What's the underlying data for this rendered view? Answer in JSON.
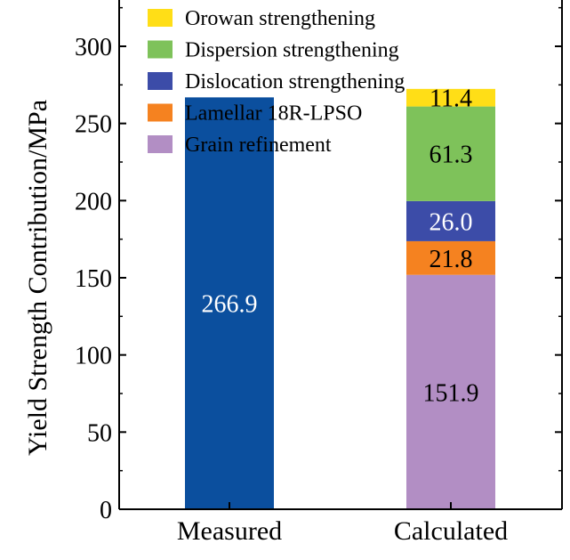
{
  "chart_data": {
    "type": "bar",
    "stacked": true,
    "categories": [
      "Measured",
      "Calculated"
    ],
    "ylabel": "Yield Strength Contribution/MPa",
    "xlabel": "",
    "ylim": [
      0,
      330
    ],
    "yticks": [
      0,
      50,
      100,
      150,
      200,
      250,
      300
    ],
    "legend_position": "top-left",
    "series": [
      {
        "name": "Grain refinement",
        "color": "#b28ec4",
        "label_color": "#000000",
        "values": [
          null,
          151.9
        ],
        "labels": [
          "",
          "151.9"
        ]
      },
      {
        "name": "Lamellar 18R-LPSO",
        "color": "#f58220",
        "label_color": "#000000",
        "values": [
          null,
          21.8
        ],
        "labels": [
          "",
          "21.8"
        ]
      },
      {
        "name": "Dislocation strengthening",
        "color": "#3c4ca8",
        "label_color": "#ffffff",
        "values": [
          null,
          26.0
        ],
        "labels": [
          "",
          "26.0"
        ]
      },
      {
        "name": "Dispersion strengthening",
        "color": "#7ec25a",
        "label_color": "#000000",
        "values": [
          null,
          61.3
        ],
        "labels": [
          "",
          "61.3"
        ]
      },
      {
        "name": "Orowan strengthening",
        "color": "#ffde17",
        "label_color": "#000000",
        "values": [
          null,
          11.4
        ],
        "labels": [
          "",
          "11.4"
        ]
      }
    ],
    "measured": {
      "value": 266.9,
      "label": "266.9",
      "color": "#0b4f9e",
      "label_color": "#ffffff"
    },
    "legend_order": [
      4,
      3,
      2,
      1,
      0
    ]
  }
}
